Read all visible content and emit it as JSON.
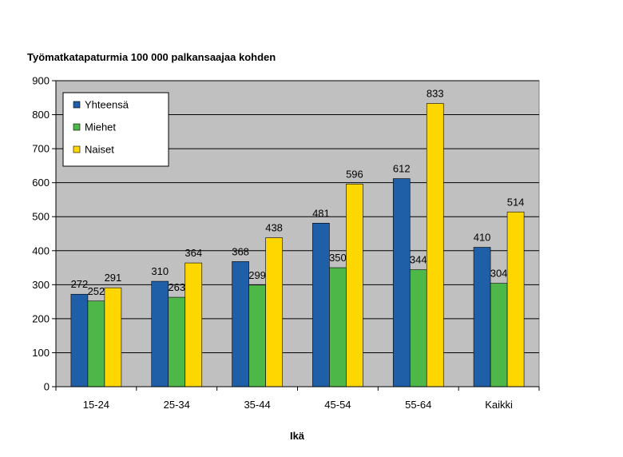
{
  "chart_data": {
    "type": "bar",
    "title": "Työmatkatapaturmia 100 000 palkansaajaa kohden",
    "xlabel": "Ikä",
    "ylabel": "",
    "categories": [
      "15-24",
      "25-34",
      "35-44",
      "45-54",
      "55-64",
      "Kaikki"
    ],
    "ylim": [
      0,
      900
    ],
    "yticks": [
      0,
      100,
      200,
      300,
      400,
      500,
      600,
      700,
      800,
      900
    ],
    "grid": true,
    "legend_position": "top-left",
    "series": [
      {
        "name": "Yhteensä",
        "color": "#1f5fa8",
        "values": [
          272,
          310,
          368,
          481,
          612,
          410
        ]
      },
      {
        "name": "Miehet",
        "color": "#4db848",
        "values": [
          252,
          263,
          299,
          350,
          344,
          304
        ]
      },
      {
        "name": "Naiset",
        "color": "#ffd700",
        "values": [
          291,
          364,
          438,
          596,
          833,
          514
        ]
      }
    ],
    "plot_background": "#c0c0c0"
  }
}
